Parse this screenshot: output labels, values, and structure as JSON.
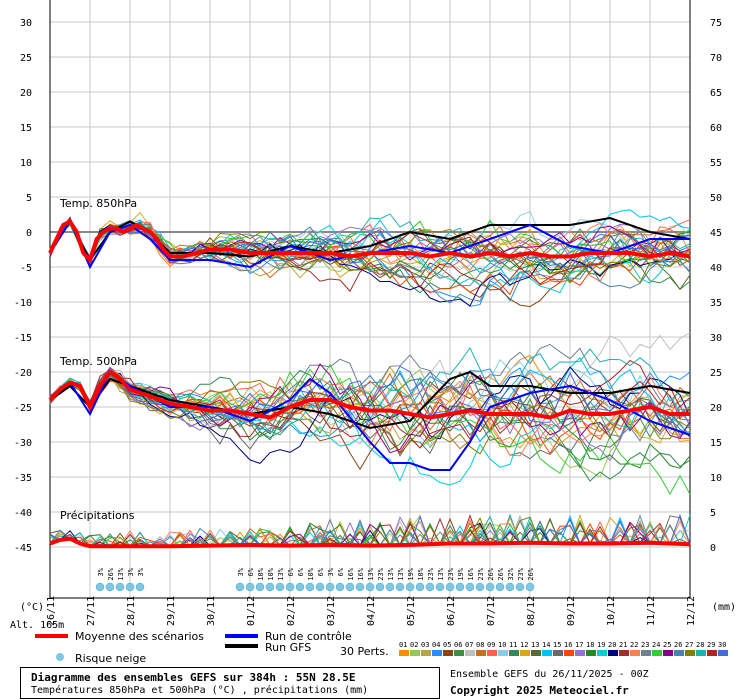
{
  "chart_data": {
    "type": "line",
    "title": "Diagramme des ensembles GEFS sur 384h : 55N 28.5E",
    "subtitle": "Températures 850hPa et 500hPa (°C) , précipitations (mm)",
    "x_ticks": [
      "26/11",
      "27/11",
      "28/11",
      "29/11",
      "30/11",
      "01/12",
      "02/12",
      "03/12",
      "04/12",
      "05/12",
      "06/12",
      "07/12",
      "08/12",
      "09/12",
      "10/12",
      "11/12",
      "12/12"
    ],
    "ylabel_left": "(°C)",
    "ylabel_right": "(mm)",
    "y_left_ticks": [
      30,
      25,
      20,
      15,
      10,
      5,
      0,
      -5,
      -10,
      -15,
      -20,
      -25,
      -30,
      -35,
      -40,
      -45
    ],
    "y_right_ticks": [
      75,
      70,
      65,
      60,
      55,
      50,
      45,
      40,
      35,
      30,
      25,
      20,
      15,
      10,
      5,
      0
    ],
    "ylim_left": [
      -45,
      30
    ],
    "ylim_right": [
      0,
      75
    ],
    "altitude": "Alt. 165m",
    "panel_labels": [
      "Temp. 850hPa",
      "Temp. 500hPa",
      "Précipitations"
    ],
    "legend": {
      "mean": "Moyenne des scénarios",
      "control": "Run de contrôle",
      "gfs": "Run GFS",
      "snow": "Risque neige",
      "perts": "30 Perts."
    },
    "snow_risk": {
      "block1": [
        "3%",
        "26%",
        "13%",
        "3%",
        "3%"
      ],
      "block2": [
        "3%",
        "6%",
        "10%",
        "10%",
        "13%",
        "6%",
        "6%",
        "10%",
        "6%",
        "3%",
        "6%",
        "16%",
        "16%",
        "13%",
        "23%",
        "13%",
        "13%",
        "19%",
        "10%",
        "23%",
        "13%",
        "23%",
        "19%",
        "16%",
        "23%",
        "26%",
        "26%",
        "32%",
        "23%",
        "26%"
      ]
    },
    "t850_mean": [
      [
        0,
        -3
      ],
      [
        4,
        -1
      ],
      [
        8,
        1
      ],
      [
        12,
        1.5
      ],
      [
        16,
        0
      ],
      [
        20,
        -3
      ],
      [
        24,
        -4
      ],
      [
        28,
        -1
      ],
      [
        32,
        0
      ],
      [
        36,
        0.5
      ],
      [
        40,
        0.5
      ],
      [
        44,
        0
      ],
      [
        48,
        0.5
      ],
      [
        52,
        1
      ],
      [
        56,
        0.5
      ],
      [
        60,
        0
      ],
      [
        64,
        -1
      ],
      [
        68,
        -2.5
      ],
      [
        72,
        -3.5
      ],
      [
        80,
        -3.5
      ],
      [
        88,
        -3
      ],
      [
        96,
        -2.5
      ],
      [
        108,
        -2.5
      ],
      [
        120,
        -3
      ],
      [
        132,
        -3
      ],
      [
        144,
        -3
      ],
      [
        156,
        -3
      ],
      [
        168,
        -3
      ],
      [
        180,
        -3.5
      ],
      [
        192,
        -3
      ],
      [
        204,
        -3
      ],
      [
        216,
        -3
      ],
      [
        228,
        -3.5
      ],
      [
        240,
        -3
      ],
      [
        252,
        -3.5
      ],
      [
        264,
        -3
      ],
      [
        276,
        -3.5
      ],
      [
        288,
        -3
      ],
      [
        300,
        -3.5
      ],
      [
        312,
        -3.5
      ],
      [
        324,
        -3
      ],
      [
        336,
        -3
      ],
      [
        348,
        -3
      ],
      [
        360,
        -3.5
      ],
      [
        372,
        -3
      ],
      [
        384,
        -3.5
      ]
    ],
    "t500_mean": [
      [
        0,
        -24
      ],
      [
        6,
        -22.5
      ],
      [
        12,
        -21.5
      ],
      [
        18,
        -22
      ],
      [
        24,
        -25
      ],
      [
        30,
        -22
      ],
      [
        36,
        -20
      ],
      [
        42,
        -21
      ],
      [
        48,
        -22.5
      ],
      [
        60,
        -23.5
      ],
      [
        72,
        -24.5
      ],
      [
        84,
        -25
      ],
      [
        96,
        -25.5
      ],
      [
        108,
        -25.5
      ],
      [
        120,
        -26
      ],
      [
        132,
        -26.5
      ],
      [
        144,
        -25
      ],
      [
        156,
        -24
      ],
      [
        168,
        -24
      ],
      [
        180,
        -25
      ],
      [
        192,
        -25.5
      ],
      [
        204,
        -25.5
      ],
      [
        216,
        -26
      ],
      [
        228,
        -26.5
      ],
      [
        240,
        -26
      ],
      [
        252,
        -25.5
      ],
      [
        264,
        -26
      ],
      [
        276,
        -26
      ],
      [
        288,
        -26
      ],
      [
        300,
        -26.5
      ],
      [
        312,
        -25.5
      ],
      [
        324,
        -26
      ],
      [
        336,
        -26
      ],
      [
        348,
        -25.5
      ],
      [
        360,
        -25
      ],
      [
        372,
        -26
      ],
      [
        384,
        -26
      ]
    ],
    "precip_mean": [
      [
        0,
        0.5
      ],
      [
        6,
        1
      ],
      [
        12,
        1.2
      ],
      [
        18,
        0.5
      ],
      [
        24,
        0.1
      ],
      [
        36,
        0.1
      ],
      [
        48,
        0.1
      ],
      [
        72,
        0.1
      ],
      [
        96,
        0.2
      ],
      [
        120,
        0.3
      ],
      [
        144,
        0.2
      ],
      [
        168,
        0.3
      ],
      [
        192,
        0.2
      ],
      [
        216,
        0.3
      ],
      [
        240,
        0.5
      ],
      [
        264,
        0.5
      ],
      [
        288,
        0.6
      ],
      [
        312,
        0.5
      ],
      [
        336,
        0.5
      ],
      [
        360,
        0.6
      ],
      [
        384,
        0.4
      ]
    ],
    "control_t850": [
      [
        0,
        -3
      ],
      [
        12,
        1.5
      ],
      [
        24,
        -5
      ],
      [
        36,
        0
      ],
      [
        48,
        1
      ],
      [
        60,
        -1
      ],
      [
        72,
        -4
      ],
      [
        96,
        -4
      ],
      [
        120,
        -5
      ],
      [
        144,
        -2
      ],
      [
        168,
        -4
      ],
      [
        192,
        -3
      ],
      [
        216,
        -2
      ],
      [
        240,
        -3
      ],
      [
        264,
        -1
      ],
      [
        288,
        1
      ],
      [
        312,
        -2
      ],
      [
        336,
        -3
      ],
      [
        360,
        -1
      ],
      [
        384,
        -1
      ]
    ],
    "control_t500": [
      [
        0,
        -24
      ],
      [
        12,
        -21.5
      ],
      [
        24,
        -26
      ],
      [
        36,
        -20
      ],
      [
        48,
        -22
      ],
      [
        72,
        -25
      ],
      [
        96,
        -25
      ],
      [
        120,
        -27
      ],
      [
        144,
        -24
      ],
      [
        156,
        -21
      ],
      [
        168,
        -23
      ],
      [
        192,
        -30
      ],
      [
        204,
        -33
      ],
      [
        216,
        -33
      ],
      [
        228,
        -34
      ],
      [
        240,
        -34
      ],
      [
        252,
        -30
      ],
      [
        264,
        -25
      ],
      [
        276,
        -24
      ],
      [
        288,
        -23
      ],
      [
        312,
        -22
      ],
      [
        336,
        -24
      ],
      [
        360,
        -27
      ],
      [
        384,
        -29
      ]
    ],
    "gfs_t850": [
      [
        0,
        -3
      ],
      [
        12,
        1.5
      ],
      [
        24,
        -4
      ],
      [
        36,
        0
      ],
      [
        48,
        1.5
      ],
      [
        60,
        0
      ],
      [
        72,
        -3
      ],
      [
        96,
        -3
      ],
      [
        120,
        -3.5
      ],
      [
        144,
        -2
      ],
      [
        168,
        -3
      ],
      [
        192,
        -2
      ],
      [
        216,
        0
      ],
      [
        240,
        -1
      ],
      [
        264,
        1
      ],
      [
        288,
        1
      ],
      [
        312,
        1
      ],
      [
        336,
        2
      ],
      [
        360,
        0
      ],
      [
        384,
        -1
      ]
    ],
    "gfs_t500": [
      [
        0,
        -24
      ],
      [
        12,
        -22
      ],
      [
        24,
        -25
      ],
      [
        36,
        -21
      ],
      [
        48,
        -22
      ],
      [
        72,
        -24
      ],
      [
        96,
        -25
      ],
      [
        120,
        -26
      ],
      [
        144,
        -25
      ],
      [
        168,
        -26
      ],
      [
        192,
        -28
      ],
      [
        216,
        -27
      ],
      [
        240,
        -21
      ],
      [
        252,
        -20
      ],
      [
        264,
        -22
      ],
      [
        288,
        -22
      ],
      [
        312,
        -23
      ],
      [
        336,
        -23
      ],
      [
        360,
        -22
      ],
      [
        384,
        -23
      ]
    ],
    "pert_colors": [
      "#ff8c00",
      "#9ac94a",
      "#b5a642",
      "#1e90ff",
      "#8b4513",
      "#3c8f3c",
      "#c0c0c0",
      "#d2691e",
      "#ff6347",
      "#87ceeb",
      "#2e8b57",
      "#daa520",
      "#556b2f",
      "#00bfff",
      "#696969",
      "#ff4500",
      "#9370db",
      "#228b22",
      "#00ced1",
      "#000080",
      "#a52a2a",
      "#ff7f50",
      "#708090",
      "#32cd32",
      "#8b008b",
      "#4682b4",
      "#808000",
      "#20b2aa",
      "#b22222",
      "#4169e1"
    ],
    "pert_numbers": [
      "01",
      "02",
      "03",
      "04",
      "05",
      "06",
      "07",
      "08",
      "09",
      "10",
      "11",
      "12",
      "13",
      "14",
      "15",
      "16",
      "17",
      "18",
      "19",
      "20",
      "21",
      "22",
      "23",
      "24",
      "25",
      "26",
      "27",
      "28",
      "29",
      "30"
    ]
  },
  "footer": {
    "title": "Diagramme des ensembles GEFS sur 384h : 55N 28.5E",
    "subtitle": "Températures 850hPa et 500hPa (°C) , précipitations (mm)",
    "ensemble": "Ensemble GEFS du 26/11/2025 - 00Z",
    "copyright": "Copyright 2025 Meteociel.fr"
  }
}
